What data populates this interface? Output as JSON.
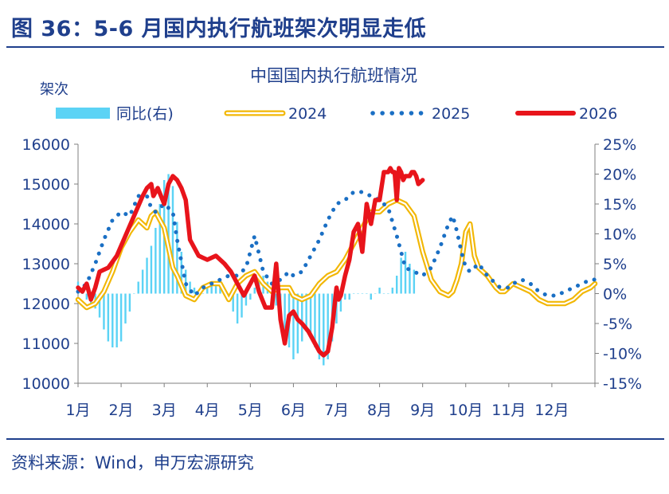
{
  "header": {
    "figure_title": "图 36：5-6 月国内执行航班架次明显走低"
  },
  "footer": {
    "source": "资料来源：Wind，申万宏源研究"
  },
  "colors": {
    "brand": "#1f3f8c",
    "bar": "#5cd3f5",
    "s2024": "#f2b705",
    "s2025": "#1a6fc4",
    "s2026": "#e8141b"
  },
  "chart_data": {
    "type": "line",
    "title": "中国国内执行航班情况",
    "y_unit_label": "架次",
    "ylim_left": [
      10000,
      16000
    ],
    "ylim_right": [
      -15,
      25
    ],
    "yticks_left": [
      "16000",
      "15000",
      "14000",
      "13000",
      "12000",
      "11000",
      "10000"
    ],
    "yticks_right": [
      "25%",
      "20%",
      "15%",
      "10%",
      "5%",
      "0%",
      "-5%",
      "-10%",
      "-15%"
    ],
    "categories": [
      "1月",
      "2月",
      "3月",
      "4月",
      "5月",
      "6月",
      "7月",
      "8月",
      "9月",
      "10月",
      "11月",
      "12月"
    ],
    "x_range": [
      0,
      12
    ],
    "legend": [
      "同比(右)",
      "2024",
      "2025",
      "2026"
    ],
    "bar_series": {
      "name": "同比(右)",
      "axis": "right",
      "x": [
        0.0,
        0.1,
        0.2,
        0.3,
        0.4,
        0.5,
        0.6,
        0.7,
        0.8,
        0.9,
        1.0,
        1.1,
        1.2,
        1.3,
        1.4,
        1.5,
        1.6,
        1.7,
        1.8,
        1.9,
        2.0,
        2.1,
        2.2,
        2.3,
        2.4,
        2.5,
        2.6,
        2.7,
        2.8,
        2.9,
        3.0,
        3.1,
        3.2,
        3.3,
        3.4,
        3.5,
        3.6,
        3.7,
        3.8,
        3.9,
        4.0,
        4.1,
        4.2,
        4.3,
        4.4,
        4.5,
        4.6,
        4.7,
        4.8,
        4.9,
        5.0,
        5.1,
        5.2,
        5.3,
        5.4,
        5.5,
        5.6,
        5.7,
        5.8,
        5.9,
        6.0,
        6.1,
        6.2,
        6.3,
        6.4,
        6.5,
        6.6,
        6.7,
        6.8,
        6.9,
        7.0,
        7.1,
        7.2,
        7.3,
        7.4,
        7.5,
        7.6,
        7.7,
        7.8
      ],
      "values": [
        2,
        0,
        -1,
        -2,
        -2.5,
        -4,
        -6,
        -8,
        -9,
        -9,
        -8,
        -5,
        -3,
        0,
        2,
        4,
        6,
        8,
        11,
        15,
        19,
        20,
        18,
        12,
        7,
        4,
        2,
        1,
        0,
        0,
        1,
        2,
        2,
        1,
        0,
        -1,
        -3,
        -5,
        -4,
        -2,
        -1,
        1,
        3,
        3,
        2,
        0,
        -2,
        -5,
        -7,
        -9,
        -11,
        -10,
        -8,
        -6,
        -7,
        -9,
        -11,
        -12,
        -11,
        -8,
        -5,
        -3,
        -1,
        -1,
        0,
        0,
        0,
        0,
        -1,
        0,
        1,
        0,
        0,
        1,
        3,
        6,
        7,
        5,
        4
      ]
    },
    "series": [
      {
        "name": "2024",
        "style": "double",
        "x": [
          0.0,
          0.2,
          0.4,
          0.6,
          0.8,
          1.0,
          1.2,
          1.4,
          1.6,
          1.7,
          1.8,
          2.0,
          2.2,
          2.3,
          2.5,
          2.7,
          2.9,
          3.1,
          3.3,
          3.5,
          3.7,
          3.9,
          4.1,
          4.3,
          4.5,
          4.7,
          4.9,
          5.0,
          5.2,
          5.4,
          5.6,
          5.8,
          6.0,
          6.2,
          6.4,
          6.6,
          6.8,
          7.0,
          7.2,
          7.4,
          7.6,
          7.8,
          8.0,
          8.2,
          8.4,
          8.6,
          8.7,
          8.8,
          8.9,
          9.0,
          9.1,
          9.2,
          9.3,
          9.5,
          9.7,
          9.8,
          9.9,
          10.0,
          10.1,
          10.3,
          10.5,
          10.6,
          10.7,
          10.9,
          11.1,
          11.3,
          11.5,
          11.7,
          11.9,
          12.0
        ],
        "values": [
          12100,
          11900,
          12000,
          12300,
          12800,
          13400,
          13800,
          14100,
          13900,
          14200,
          14300,
          13900,
          12900,
          12700,
          12200,
          12100,
          12400,
          12500,
          12500,
          12100,
          12500,
          12700,
          12800,
          12500,
          12300,
          12400,
          12400,
          12200,
          12100,
          12200,
          12500,
          12700,
          12800,
          13100,
          13500,
          13900,
          14300,
          14300,
          14500,
          14600,
          14500,
          14200,
          13300,
          12600,
          12300,
          12200,
          12300,
          12600,
          13000,
          13800,
          14000,
          13200,
          12900,
          12700,
          12400,
          12300,
          12300,
          12400,
          12500,
          12400,
          12300,
          12200,
          12100,
          12000,
          12000,
          12000,
          12100,
          12300,
          12400,
          12500
        ]
      },
      {
        "name": "2025",
        "style": "dotted",
        "x": [
          0.0,
          0.2,
          0.4,
          0.6,
          0.8,
          1.0,
          1.2,
          1.4,
          1.6,
          1.7,
          1.8,
          2.0,
          2.2,
          2.3,
          2.5,
          2.7,
          2.9,
          3.1,
          3.3,
          3.5,
          3.7,
          3.9,
          4.1,
          4.3,
          4.5,
          4.7,
          4.9,
          5.0,
          5.2,
          5.4,
          5.6,
          5.8,
          6.0,
          6.2,
          6.4,
          6.6,
          6.8,
          7.0,
          7.2,
          7.4,
          7.6,
          7.8,
          8.0,
          8.2,
          8.4,
          8.6,
          8.7,
          8.8,
          8.9,
          9.0,
          9.1,
          9.2,
          9.3,
          9.5,
          9.7,
          9.8,
          9.9,
          10.0,
          10.1,
          10.3,
          10.5,
          10.6,
          10.7,
          10.9,
          11.1,
          11.3,
          11.5,
          11.7,
          11.9,
          12.0
        ],
        "values": [
          12300,
          12500,
          13000,
          13600,
          14100,
          14300,
          14200,
          14700,
          14700,
          14400,
          14300,
          14500,
          14300,
          13600,
          12500,
          12200,
          12400,
          12500,
          12600,
          12700,
          12700,
          12900,
          13700,
          12800,
          12500,
          12600,
          12800,
          12700,
          12800,
          13200,
          13600,
          14100,
          14500,
          14600,
          14800,
          14800,
          14700,
          14600,
          14400,
          13700,
          12900,
          12800,
          12700,
          12900,
          13400,
          14000,
          14200,
          13800,
          13300,
          12900,
          12800,
          12900,
          13000,
          12700,
          12500,
          12400,
          12400,
          12400,
          12500,
          12600,
          12500,
          12400,
          12300,
          12200,
          12200,
          12300,
          12400,
          12500,
          12600,
          12600
        ]
      },
      {
        "name": "2026",
        "style": "solid",
        "x": [
          0.0,
          0.1,
          0.2,
          0.3,
          0.4,
          0.5,
          0.7,
          0.9,
          1.1,
          1.3,
          1.5,
          1.6,
          1.7,
          1.75,
          1.85,
          2.0,
          2.1,
          2.2,
          2.3,
          2.4,
          2.5,
          2.6,
          2.8,
          3.0,
          3.2,
          3.4,
          3.55,
          3.7,
          3.85,
          4.0,
          4.1,
          4.2,
          4.35,
          4.5,
          4.6,
          4.7,
          4.8,
          4.9,
          5.0,
          5.1,
          5.2,
          5.35,
          5.5,
          5.6,
          5.7,
          5.8,
          5.9,
          6.0,
          6.05,
          6.1,
          6.2,
          6.3,
          6.4,
          6.5,
          6.6,
          6.7,
          6.8,
          6.9,
          7.0,
          7.1,
          7.2,
          7.25,
          7.3,
          7.35,
          7.4,
          7.45,
          7.5,
          7.55,
          7.6,
          7.65,
          7.7,
          7.75,
          7.8,
          7.85,
          7.9,
          8.0
        ],
        "values": [
          12400,
          12300,
          12500,
          12100,
          12400,
          12800,
          12900,
          13200,
          13700,
          14200,
          14700,
          14900,
          15000,
          14700,
          14900,
          14500,
          15000,
          15200,
          15100,
          14900,
          14600,
          13600,
          13200,
          13100,
          13200,
          13000,
          12800,
          12500,
          12200,
          12500,
          12700,
          12300,
          11900,
          11900,
          13000,
          11600,
          11000,
          11700,
          11800,
          11600,
          11500,
          11300,
          11000,
          10800,
          10700,
          10800,
          11400,
          12400,
          12100,
          12200,
          12700,
          13100,
          13800,
          14000,
          13300,
          14500,
          14000,
          14600,
          14600,
          15300,
          15300,
          15400,
          15300,
          15300,
          14600,
          15400,
          15300,
          15100,
          15200,
          15200,
          15200,
          15300,
          15300,
          15200,
          15000,
          15100
        ]
      }
    ]
  }
}
